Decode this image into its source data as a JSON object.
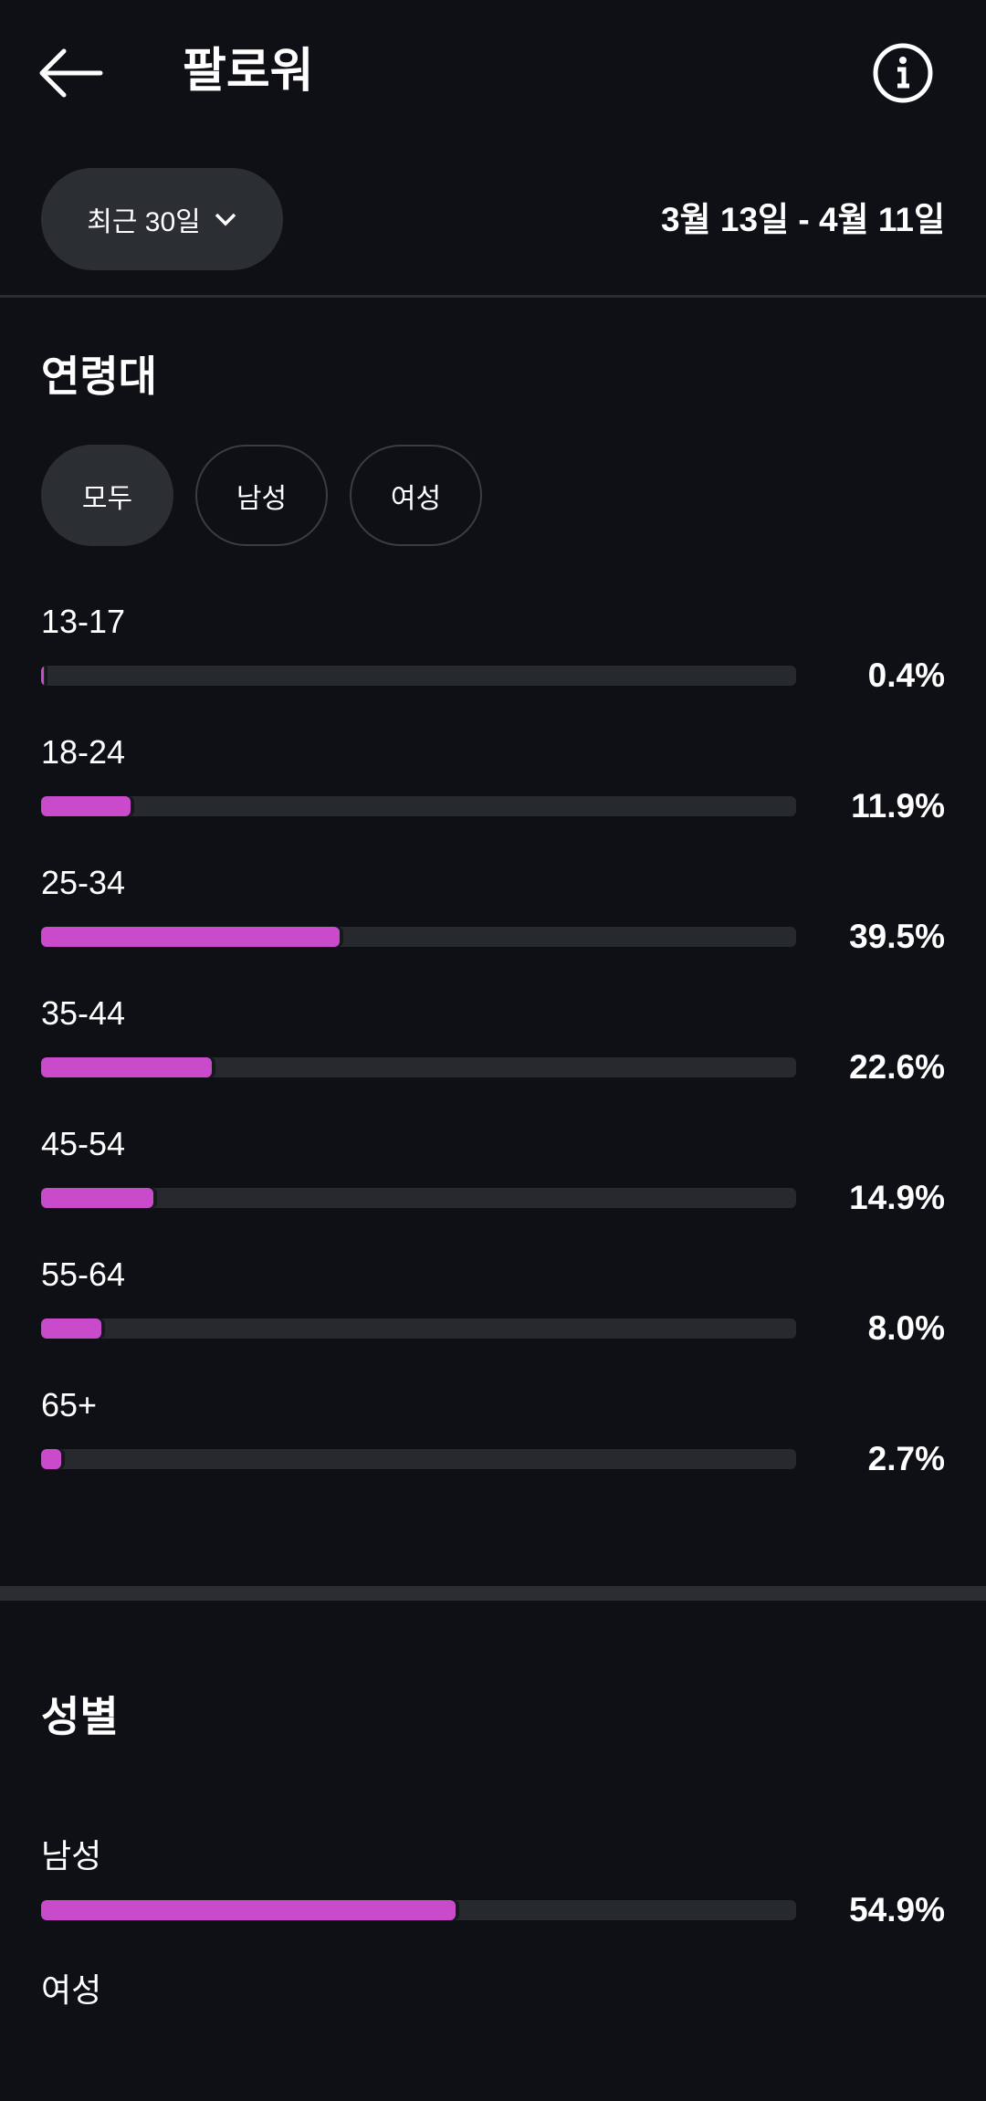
{
  "header": {
    "title": "팔로워",
    "back_icon": "arrow-left-icon",
    "info_icon": "info-icon"
  },
  "filter": {
    "period_label": "최근 30일",
    "date_range": "3월 13일 - 4월 11일"
  },
  "age": {
    "title": "연령대",
    "chips": [
      "모두",
      "남성",
      "여성"
    ],
    "selected_chip": "모두",
    "rows": [
      {
        "label": "13-17",
        "pct": "0.4%",
        "value": 0.4
      },
      {
        "label": "18-24",
        "pct": "11.9%",
        "value": 11.9
      },
      {
        "label": "25-34",
        "pct": "39.5%",
        "value": 39.5
      },
      {
        "label": "35-44",
        "pct": "22.6%",
        "value": 22.6
      },
      {
        "label": "45-54",
        "pct": "14.9%",
        "value": 14.9
      },
      {
        "label": "55-64",
        "pct": "8.0%",
        "value": 8.0
      },
      {
        "label": "65+",
        "pct": "2.7%",
        "value": 2.7
      }
    ]
  },
  "gender": {
    "title": "성별",
    "rows": [
      {
        "label": "남성",
        "pct": "54.9%",
        "value": 54.9
      },
      {
        "label": "여성"
      }
    ]
  },
  "colors": {
    "bar_fill": "#c94bcb",
    "track": "#26292e",
    "background": "#0e1015"
  }
}
